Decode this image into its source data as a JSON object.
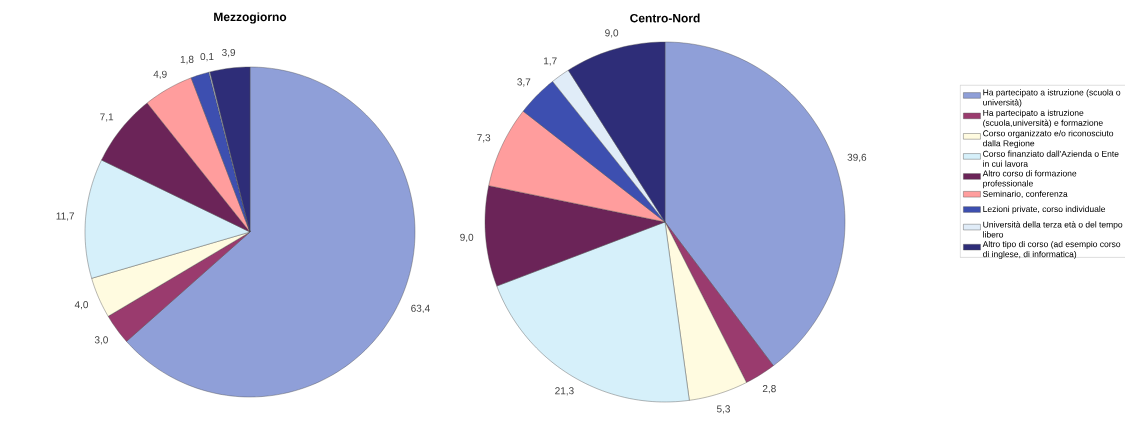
{
  "chart_data": [
    {
      "type": "pie",
      "title": "Mezzogiorno",
      "categories": [
        null,
        null,
        null,
        null,
        null,
        null,
        null,
        null,
        null
      ],
      "values": [
        63.4,
        3.0,
        4.0,
        11.7,
        7.1,
        4.9,
        1.8,
        0.1,
        3.9
      ],
      "value_labels": [
        "63,4",
        "3,0",
        "4,0",
        "11,7",
        "7,1",
        "4,9",
        "1,8",
        "0,1",
        "3,9"
      ],
      "colors": [
        "#8f9fd8",
        "#9a3b6e",
        "#fffbe0",
        "#d6f0fa",
        "#6b2458",
        "#ff9d9d",
        "#3d4fb0",
        "#e0ecf8",
        "#2e2d78"
      ],
      "legend": false
    },
    {
      "type": "pie",
      "title": "Centro-Nord",
      "categories": [
        "Ha partecipato a istruzione (scuola o università)",
        "Ha partecipato a istruzione (scuola,università) e formazione",
        "Corso organizzato e/o riconosciuto dalla Regione",
        "Corso finanziato dall'Azienda o Ente in cui lavora",
        "Altro corso di formazione professionale",
        "Seminario, conferenza",
        "Lezioni private, corso individuale",
        "Università della terza età o del tempo libero",
        "Altro tipo di corso (ad esempio corso di inglese, di informatica)"
      ],
      "values": [
        39.6,
        2.8,
        5.3,
        21.3,
        9.0,
        7.3,
        3.7,
        1.7,
        9.0
      ],
      "value_labels": [
        "39,6",
        "2,8",
        "5,3",
        "21,3",
        "9,0",
        "7,3",
        "3,7",
        "1,7",
        "9,0"
      ],
      "colors": [
        "#8f9fd8",
        "#9a3b6e",
        "#fffbe0",
        "#d6f0fa",
        "#6b2458",
        "#ff9d9d",
        "#3d4fb0",
        "#e0ecf8",
        "#2e2d78"
      ],
      "legend": "right"
    }
  ]
}
